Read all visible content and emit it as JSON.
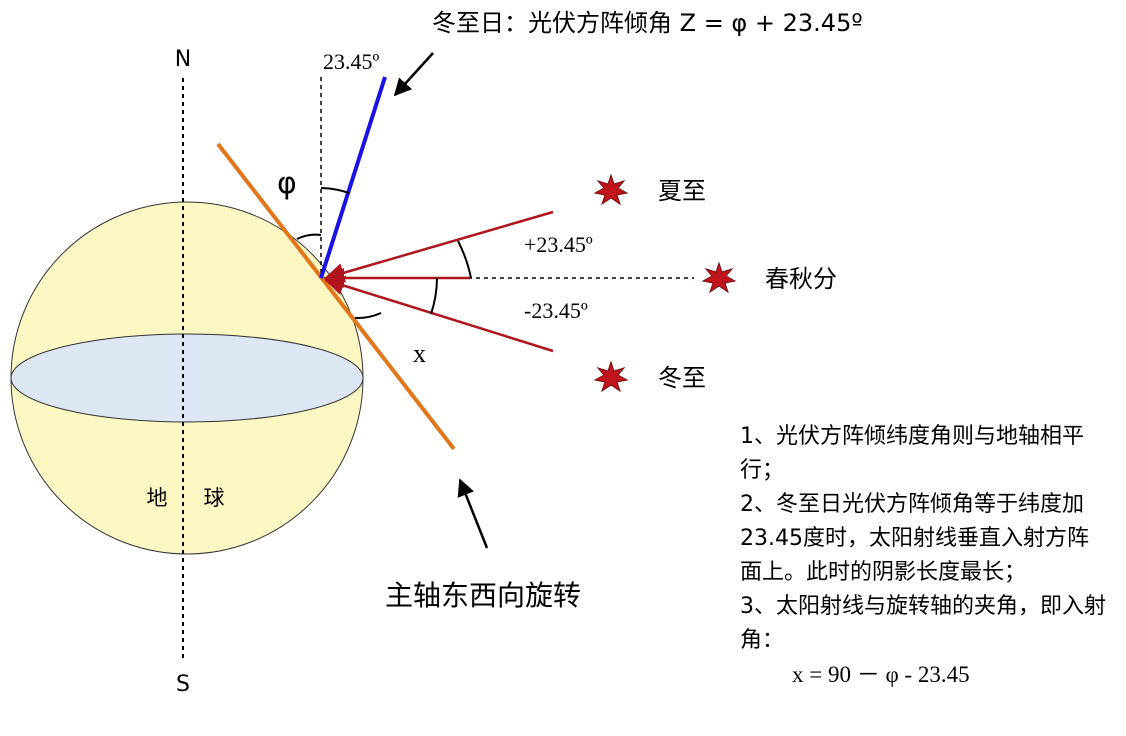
{
  "title_formula": "冬至日：光伏方阵倾角 Z = φ + 23.45º",
  "labels": {
    "north": "N",
    "south": "S",
    "phi": "φ",
    "angle_23": "23.45º",
    "plus_angle": "+23.45º",
    "minus_angle": "-23.45º",
    "x": "x",
    "earth_char_1": "地",
    "earth_char_2": "球",
    "rotation_caption": "主轴东西向旋转"
  },
  "suns": {
    "summer_solstice": "夏至",
    "equinox": "春秋分",
    "winter_solstice": "冬至"
  },
  "notes": [
    "1、光伏方阵倾纬度角则与地轴相平行；",
    "2、冬至日光伏方阵倾角等于纬度加23.45度时，太阳射线垂直入射方阵面上。此时的阴影长度最长；",
    "3、太阳射线与旋转轴的夹角，即入射角："
  ],
  "formula": "x = 90 － φ - 23.45",
  "colors": {
    "sphere_fill": "#fdf7c4",
    "equator_fill": "#dde6f3",
    "orange_axis": "#e2761b",
    "blue_panel": "#1a12e0",
    "red_ray": "#b0141c",
    "sun": "#c0151c"
  }
}
